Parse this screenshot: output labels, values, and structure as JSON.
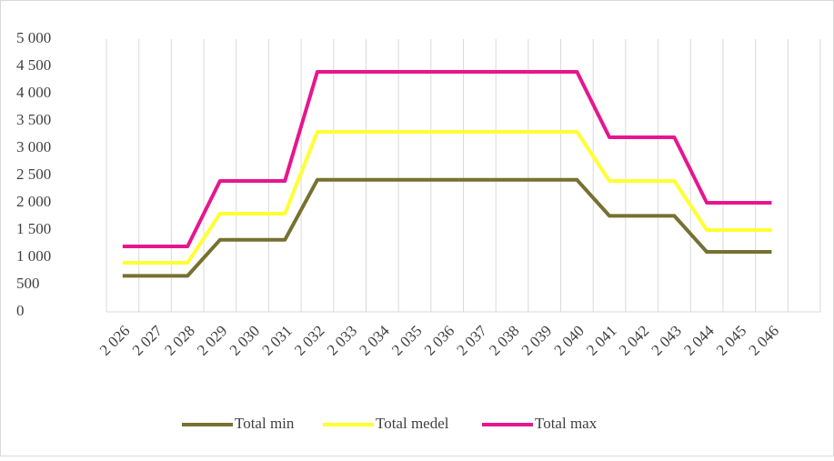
{
  "chart_data": {
    "type": "line",
    "categories": [
      "2 026",
      "2 027",
      "2 028",
      "2 029",
      "2 030",
      "2 031",
      "2 032",
      "2 033",
      "2 034",
      "2 035",
      "2 036",
      "2 037",
      "2 038",
      "2 039",
      "2 040",
      "2 041",
      "2 042",
      "2 043",
      "2 044",
      "2 045",
      "2 046",
      null
    ],
    "series": [
      {
        "name": "Total min",
        "color": "#767131",
        "values": [
          660,
          660,
          660,
          1320,
          1320,
          1320,
          2420,
          2420,
          2420,
          2420,
          2420,
          2420,
          2420,
          2420,
          2420,
          1760,
          1760,
          1760,
          1100,
          1100,
          1100,
          null
        ]
      },
      {
        "name": "Total medel",
        "color": "#ffff33",
        "values": [
          900,
          900,
          900,
          1800,
          1800,
          1800,
          3300,
          3300,
          3300,
          3300,
          3300,
          3300,
          3300,
          3300,
          3300,
          2400,
          2400,
          2400,
          1500,
          1500,
          1500,
          null
        ]
      },
      {
        "name": "Total max",
        "color": "#e6168f",
        "values": [
          1200,
          1200,
          1200,
          2400,
          2400,
          2400,
          4400,
          4400,
          4400,
          4400,
          4400,
          4400,
          4400,
          4400,
          4400,
          3200,
          3200,
          3200,
          2000,
          2000,
          2000,
          null
        ]
      }
    ],
    "ylim": [
      0,
      5000
    ],
    "yticks": [
      0,
      500,
      {
        "value": 1000,
        "label": "1 000"
      },
      {
        "value": 1500,
        "label": "1 500"
      },
      {
        "value": 2000,
        "label": "2 000"
      },
      {
        "value": 2500,
        "label": "2 500"
      },
      {
        "value": 3000,
        "label": "3 000"
      },
      {
        "value": 3500,
        "label": "3 500"
      },
      {
        "value": 4000,
        "label": "4 000"
      },
      {
        "value": 4500,
        "label": "4 500"
      },
      {
        "value": 5000,
        "label": "5 000"
      }
    ],
    "grid": true,
    "legend": "bottom"
  }
}
